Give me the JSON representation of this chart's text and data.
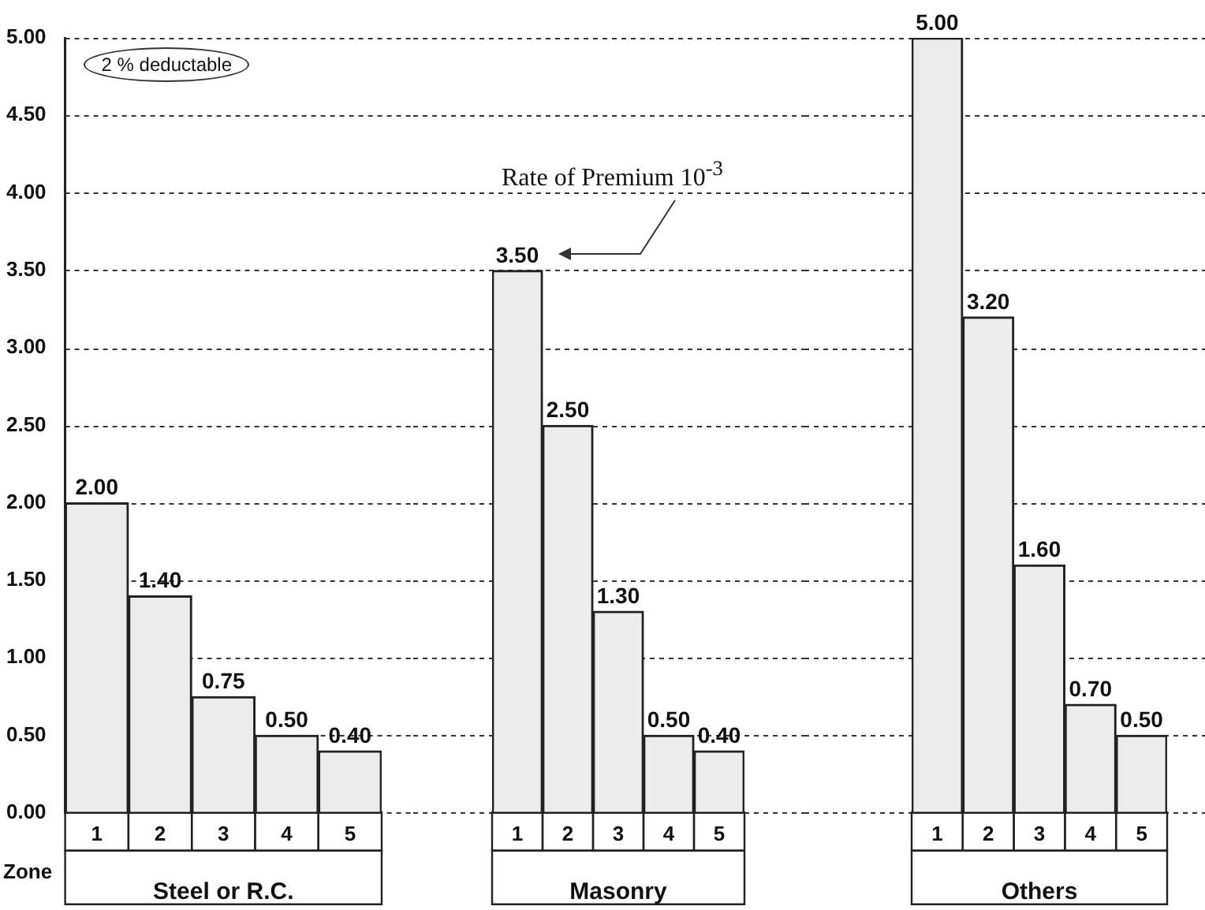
{
  "chart_data": [
    {
      "type": "bar",
      "categories": [
        "1",
        "2",
        "3",
        "4",
        "5"
      ],
      "values": [
        2,
        1.4,
        0.75,
        0.5,
        0.4
      ],
      "value_labels": [
        "2.00",
        "1.40",
        "0.75",
        "0.50",
        "0.40"
      ],
      "color": "#ececec",
      "xlabel": "Steel or R.C.",
      "ylim": [
        0,
        5
      ],
      "yticks": [
        {
          "value": 0,
          "label": "0.00"
        },
        {
          "value": 0.5,
          "label": "0.50"
        },
        {
          "value": 1,
          "label": "1.00"
        },
        {
          "value": 1.5,
          "label": "1.50"
        },
        {
          "value": 2,
          "label": "2.00"
        },
        {
          "value": 2.5,
          "label": "2.50"
        },
        {
          "value": 3,
          "label": "3.00"
        },
        {
          "value": 3.5,
          "label": "3.50"
        },
        {
          "value": 4,
          "label": "4.00"
        },
        {
          "value": 4.5,
          "label": "4.50"
        },
        {
          "value": 5,
          "label": "5.00"
        }
      ],
      "grid": "y",
      "annotations": [
        "2 % deductable",
        "Zone"
      ]
    },
    {
      "type": "bar",
      "categories": [
        "1",
        "2",
        "3",
        "4",
        "5"
      ],
      "values": [
        3.5,
        2.5,
        1.3,
        0.5,
        0.4
      ],
      "value_labels": [
        "3.50",
        "2.50",
        "1.30",
        "0.50",
        "0.40"
      ],
      "color": "#ececec",
      "xlabel": "Masonry",
      "ylim": [
        0,
        5
      ],
      "yticks": [
        {
          "value": 0,
          "label": null
        },
        {
          "value": 0.5,
          "label": null
        },
        {
          "value": 1,
          "label": null
        },
        {
          "value": 1.5,
          "label": null
        },
        {
          "value": 2,
          "label": null
        },
        {
          "value": 2.5,
          "label": null
        },
        {
          "value": 3,
          "label": null
        },
        {
          "value": 3.5,
          "label": null
        },
        {
          "value": 4,
          "label": null
        },
        {
          "value": 4.5,
          "label": null
        },
        {
          "value": 5,
          "label": null
        }
      ],
      "grid": "y",
      "tick_labels": "x",
      "annotations": [
        "Rate of Premium 10$^{-3}$"
      ]
    },
    {
      "type": "bar",
      "categories": [
        "1",
        "2",
        "3",
        "4",
        "5"
      ],
      "values": [
        5,
        3.2,
        1.6,
        0.7,
        0.5
      ],
      "value_labels": [
        "5.00",
        "3.20",
        "1.60",
        "0.70",
        "0.50"
      ],
      "color": "#ececec",
      "xlabel": "Others",
      "ylim": [
        0,
        5
      ],
      "yticks": [
        {
          "value": 0,
          "label": null
        },
        {
          "value": 0.5,
          "label": null
        },
        {
          "value": 1,
          "label": null
        },
        {
          "value": 1.5,
          "label": null
        },
        {
          "value": 2,
          "label": null
        },
        {
          "value": 2.5,
          "label": null
        },
        {
          "value": 3,
          "label": null
        },
        {
          "value": 3.5,
          "label": null
        },
        {
          "value": 4,
          "label": null
        },
        {
          "value": 4.5,
          "label": null
        },
        {
          "value": 5,
          "label": null
        }
      ],
      "grid": "y",
      "tick_labels": "x"
    }
  ]
}
